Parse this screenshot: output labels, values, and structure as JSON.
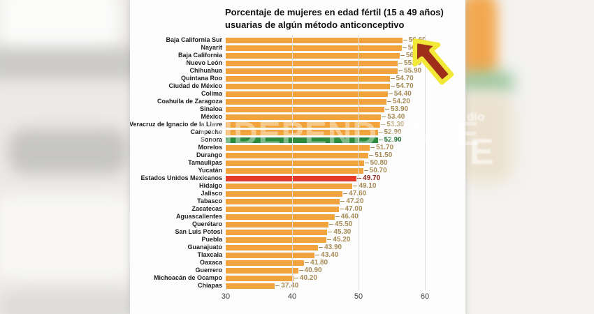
{
  "title": {
    "line1": "Porcentaje de mujeres en edad fértil (15 a 49 años)",
    "line2": "usuarias de algún método anticonceptivo"
  },
  "watermark": {
    "text": "INDEPENDIENTE"
  },
  "background_fragments": {
    "small_text": "dio",
    "big_letter": "E"
  },
  "annotation": {
    "type": "arrow",
    "points_at": "Baja California Sur",
    "fill": "#9E2F1B",
    "outline": "#F2E838"
  },
  "palette": {
    "orange": {
      "bar": "#F1A33D",
      "text": "#A68B55"
    },
    "green": {
      "bar": "#2B8C3E",
      "text": "#1E6F2F"
    },
    "red": {
      "bar": "#E53B2C",
      "text": "#8E2318"
    }
  },
  "chart_data": {
    "type": "bar",
    "orientation": "horizontal",
    "title": "Porcentaje de mujeres en edad fértil (15 a 49 años) usuarias de algún método anticonceptivo",
    "xlabel": "",
    "ylabel": "",
    "xlim": [
      30,
      62
    ],
    "xticks": [
      30,
      40,
      50,
      60
    ],
    "grid": "vertical",
    "bars": [
      {
        "name": "Baja California Sur",
        "value": 56.6,
        "color": "orange"
      },
      {
        "name": "Nayarit",
        "value": 56.5,
        "color": "orange"
      },
      {
        "name": "Baja California",
        "value": 56.2,
        "color": "orange"
      },
      {
        "name": "Nuevo León",
        "value": 55.9,
        "color": "orange"
      },
      {
        "name": "Chihuahua",
        "value": 55.9,
        "color": "orange"
      },
      {
        "name": "Quintana Roo",
        "value": 54.7,
        "color": "orange"
      },
      {
        "name": "Ciudad de México",
        "value": 54.7,
        "color": "orange"
      },
      {
        "name": "Colima",
        "value": 54.4,
        "color": "orange"
      },
      {
        "name": "Coahuila de Zaragoza",
        "value": 54.2,
        "color": "orange"
      },
      {
        "name": "Sinaloa",
        "value": 53.9,
        "color": "orange"
      },
      {
        "name": "México",
        "value": 53.4,
        "color": "orange"
      },
      {
        "name": "Veracruz de Ignacio de la Llave",
        "value": 53.3,
        "color": "orange"
      },
      {
        "name": "Campeche",
        "value": 52.9,
        "color": "orange"
      },
      {
        "name": "Sonora",
        "value": 52.9,
        "color": "green"
      },
      {
        "name": "Morelos",
        "value": 51.7,
        "color": "orange"
      },
      {
        "name": "Durango",
        "value": 51.5,
        "color": "orange"
      },
      {
        "name": "Tamaulipas",
        "value": 50.8,
        "color": "orange"
      },
      {
        "name": "Yucatán",
        "value": 50.7,
        "color": "orange"
      },
      {
        "name": "Estados Unidos Mexicanos",
        "value": 49.7,
        "color": "red"
      },
      {
        "name": "Hidalgo",
        "value": 49.1,
        "color": "orange"
      },
      {
        "name": "Jalisco",
        "value": 47.6,
        "color": "orange"
      },
      {
        "name": "Tabasco",
        "value": 47.2,
        "color": "orange"
      },
      {
        "name": "Zacatecas",
        "value": 47.0,
        "color": "orange"
      },
      {
        "name": "Aguascalientes",
        "value": 46.4,
        "color": "orange"
      },
      {
        "name": "Querétaro",
        "value": 45.5,
        "color": "orange"
      },
      {
        "name": "San Luis Potosí",
        "value": 45.3,
        "color": "orange"
      },
      {
        "name": "Puebla",
        "value": 45.2,
        "color": "orange"
      },
      {
        "name": "Guanajuato",
        "value": 43.9,
        "color": "orange"
      },
      {
        "name": "Tlaxcala",
        "value": 43.4,
        "color": "orange"
      },
      {
        "name": "Oaxaca",
        "value": 41.8,
        "color": "orange"
      },
      {
        "name": "Guerrero",
        "value": 40.9,
        "color": "orange"
      },
      {
        "name": "Michoacán de Ocampo",
        "value": 40.2,
        "color": "orange"
      },
      {
        "name": "Chiapas",
        "value": 37.4,
        "color": "orange"
      }
    ]
  }
}
